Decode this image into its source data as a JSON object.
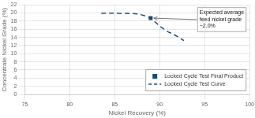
{
  "chart_data": {
    "type": "line",
    "xlabel": "Nickel Recovery (%)",
    "ylabel": "Concentrate Nickel Grade (%)",
    "xlim": [
      75,
      100
    ],
    "ylim": [
      0,
      22
    ],
    "xticks": [
      75,
      80,
      85,
      90,
      95,
      100
    ],
    "yticks": [
      0,
      2,
      4,
      6,
      8,
      10,
      12,
      14,
      16,
      18,
      20,
      22
    ],
    "grid": true,
    "legend": "lower right",
    "series": [
      {
        "name": "Locked Cycle Test Final Product",
        "type": "scatter",
        "marker": "square",
        "color": "#1a4b78",
        "x": [
          89.0
        ],
        "values": [
          18.75
        ]
      },
      {
        "name": "Locked Cycle Test Curve",
        "type": "line",
        "line_style": "dashed",
        "color": "#1a4b78",
        "x": [
          83.5,
          84.5,
          85.5,
          86.5,
          87.0,
          87.5,
          88.0,
          88.3,
          88.6,
          88.9,
          89.0,
          89.3,
          89.7,
          90.0,
          90.5,
          91.0,
          91.5,
          92.0,
          92.7
        ],
        "values": [
          19.95,
          19.95,
          19.93,
          19.9,
          19.85,
          19.75,
          19.55,
          19.35,
          19.1,
          18.9,
          18.75,
          18.2,
          17.4,
          16.8,
          16.0,
          15.3,
          14.8,
          14.2,
          13.2
        ]
      }
    ],
    "annotations": [
      {
        "text": "Expected average\nfeed nickel grade\n~2.0%",
        "x": 89.0,
        "y": 18.75
      }
    ]
  }
}
